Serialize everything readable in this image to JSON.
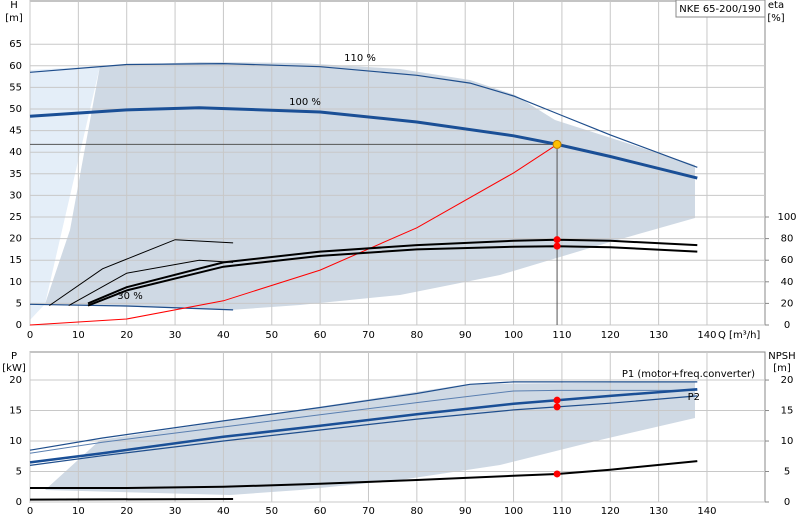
{
  "chart_data": [
    {
      "type": "line",
      "y_label": "H",
      "y_unit": "[m]",
      "y2_label": "eta",
      "y2_unit": "[%]",
      "x_label": "Q [m³/h]",
      "box": "NKE 65-200/190",
      "xlim": [
        0,
        152
      ],
      "ylim": [
        0,
        75
      ],
      "y2lim": [
        0,
        300
      ],
      "xticks": [
        0,
        10,
        20,
        30,
        40,
        50,
        60,
        70,
        80,
        90,
        100,
        110,
        120,
        130,
        140
      ],
      "yticks": [
        0,
        5,
        10,
        15,
        20,
        25,
        30,
        35,
        40,
        45,
        50,
        55,
        60,
        65
      ],
      "y2ticks": [
        0,
        20,
        40,
        60,
        80,
        100
      ],
      "grid": true,
      "series": [
        {
          "name": "110 %",
          "color": "#1f4e8c",
          "width": 1.2,
          "x": [
            0,
            20,
            40,
            60,
            80,
            91,
            100,
            110,
            120,
            138
          ],
          "values": [
            58.5,
            60.3,
            60.5,
            59.8,
            57.8,
            56,
            53,
            48.5,
            44,
            36.5
          ]
        },
        {
          "name": "100 %",
          "color": "#1a4f96",
          "width": 3,
          "x": [
            0,
            20,
            35,
            60,
            80,
            100,
            109,
            120,
            138
          ],
          "values": [
            48.3,
            49.8,
            50.3,
            49.3,
            47,
            43.8,
            41.8,
            39,
            34
          ]
        },
        {
          "name": "30 %",
          "color": "#1f4e8c",
          "width": 1.2,
          "x": [
            0,
            20,
            42
          ],
          "values": [
            4.8,
            4.4,
            3.5
          ]
        },
        {
          "color": "#ff0000",
          "width": 1,
          "x": [
            0,
            20,
            40,
            60,
            80,
            100,
            109
          ],
          "values": [
            0,
            1.4,
            5.6,
            12.7,
            22.5,
            35.2,
            41.8
          ]
        },
        {
          "color": "#000000",
          "width": 2,
          "axis": "y2",
          "x": [
            12,
            20,
            40,
            60,
            80,
            100,
            109,
            120,
            138
          ],
          "values": [
            20,
            35,
            58,
            68,
            74,
            78,
            79,
            78,
            74
          ]
        },
        {
          "color": "#000000",
          "width": 2,
          "axis": "y2",
          "x": [
            12,
            20,
            40,
            60,
            80,
            100,
            109,
            120,
            138
          ],
          "values": [
            18,
            32,
            54,
            64,
            70,
            72.5,
            73,
            72,
            68
          ]
        },
        {
          "color": "#000000",
          "width": 1,
          "axis": "y2",
          "x": [
            4,
            15,
            30,
            42
          ],
          "values": [
            18,
            52,
            79,
            76
          ]
        },
        {
          "color": "#000000",
          "width": 1,
          "axis": "y2",
          "x": [
            8,
            20,
            35,
            42
          ],
          "values": [
            18,
            48,
            60,
            58
          ]
        }
      ],
      "points": [
        {
          "x": 109,
          "value": 79,
          "axis": "y2",
          "color": "#ff0000"
        },
        {
          "x": 109,
          "value": 73,
          "axis": "y2",
          "color": "#ff0000"
        }
      ],
      "operating_point": {
        "x": 109,
        "value": 41.8,
        "color": "#ffc000"
      }
    },
    {
      "type": "line",
      "y_label": "P",
      "y_unit": "[kW]",
      "y2_label": "NPSH",
      "y2_unit": "[m]",
      "xlim": [
        0,
        152
      ],
      "ylim": [
        0,
        24.6
      ],
      "y2lim": [
        0,
        24.6
      ],
      "xticks": [
        0,
        10,
        20,
        30,
        40,
        50,
        60,
        70,
        80,
        90,
        100,
        110,
        120,
        130,
        140
      ],
      "yticks": [
        0,
        5,
        10,
        15,
        20
      ],
      "y2ticks": [
        0,
        5,
        10,
        15,
        20
      ],
      "grid": true,
      "series": [
        {
          "name": "P1 (motor+freq.converter)",
          "color": "#1f4e8c",
          "width": 1.2,
          "x": [
            0,
            15,
            40,
            60,
            80,
            91,
            100,
            120,
            138
          ],
          "values": [
            8.5,
            10.5,
            13.3,
            15.5,
            17.8,
            19.3,
            19.7,
            19.7,
            19.7
          ]
        },
        {
          "color": "#5a7fb0",
          "width": 1,
          "x": [
            0,
            15,
            40,
            60,
            80,
            100,
            109,
            120,
            138
          ],
          "values": [
            8,
            9.8,
            12.3,
            14.3,
            16.3,
            18.2,
            18.3,
            18.3,
            18.3
          ]
        },
        {
          "color": "#1a4f96",
          "width": 2.5,
          "x": [
            0,
            15,
            40,
            60,
            80,
            100,
            109,
            120,
            138
          ],
          "values": [
            6.5,
            8,
            10.7,
            12.5,
            14.4,
            16.1,
            16.7,
            17.4,
            18.5
          ]
        },
        {
          "name": "P2",
          "color": "#1f4e8c",
          "width": 1.2,
          "x": [
            0,
            15,
            40,
            60,
            80,
            100,
            109,
            120,
            138
          ],
          "values": [
            6,
            7.6,
            10,
            11.8,
            13.6,
            15.1,
            15.6,
            16.2,
            17.4
          ]
        },
        {
          "color": "#000000",
          "width": 2,
          "axis": "y2",
          "x": [
            0,
            20,
            40,
            60,
            80,
            100,
            109,
            120,
            138
          ],
          "values": [
            2.3,
            2.3,
            2.5,
            3,
            3.6,
            4.3,
            4.6,
            5.3,
            6.7
          ]
        },
        {
          "color": "#000000",
          "width": 2,
          "axis": "y2",
          "x": [
            0,
            42
          ],
          "values": [
            0.4,
            0.5
          ]
        }
      ],
      "points": [
        {
          "x": 109,
          "value": 16.7,
          "color": "#ff0000"
        },
        {
          "x": 109,
          "value": 15.6,
          "color": "#ff0000"
        },
        {
          "x": 109,
          "value": 4.6,
          "axis": "y2",
          "color": "#ff0000"
        }
      ]
    }
  ]
}
